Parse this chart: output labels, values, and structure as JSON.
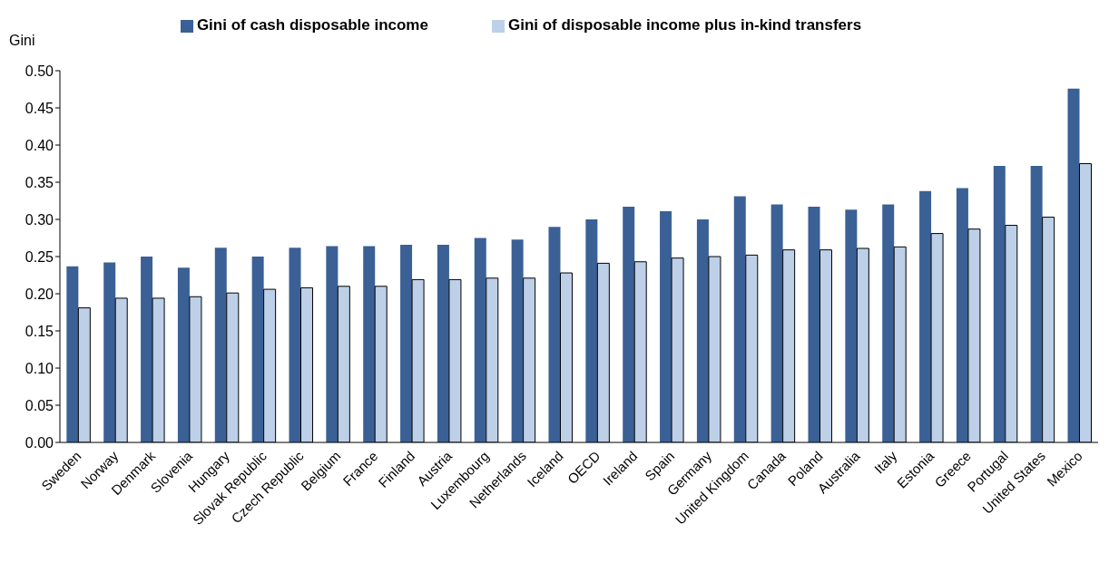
{
  "chart_data": {
    "type": "bar",
    "ylabel": "Gini",
    "categories": [
      "Sweden",
      "Norway",
      "Denmark",
      "Slovenia",
      "Hungary",
      "Slovak Republic",
      "Czech Republic",
      "Belgium",
      "France",
      "Finland",
      "Austria",
      "Luxembourg",
      "Netherlands",
      "Iceland",
      "OECD",
      "Ireland",
      "Spain",
      "Germany",
      "United Kingdom",
      "Canada",
      "Poland",
      "Australia",
      "Italy",
      "Estonia",
      "Greece",
      "Portugal",
      "United States",
      "Mexico"
    ],
    "series": [
      {
        "name": "Gini of cash disposable income",
        "color": "#3a6096",
        "values": [
          0.237,
          0.242,
          0.25,
          0.235,
          0.262,
          0.25,
          0.262,
          0.264,
          0.264,
          0.266,
          0.266,
          0.275,
          0.273,
          0.29,
          0.3,
          0.317,
          0.311,
          0.3,
          0.331,
          0.32,
          0.317,
          0.313,
          0.32,
          0.338,
          0.342,
          0.372,
          0.372,
          0.476
        ]
      },
      {
        "name": "Gini of disposable income plus in-kind transfers",
        "color": "#bdd0e8",
        "values": [
          0.181,
          0.194,
          0.194,
          0.196,
          0.201,
          0.206,
          0.208,
          0.21,
          0.21,
          0.219,
          0.219,
          0.221,
          0.221,
          0.228,
          0.241,
          0.243,
          0.248,
          0.25,
          0.252,
          0.259,
          0.259,
          0.261,
          0.263,
          0.281,
          0.287,
          0.292,
          0.303,
          0.375
        ]
      }
    ],
    "ylim": [
      0,
      0.5
    ],
    "yticks": [
      {
        "value": 0,
        "label": "0.00"
      },
      {
        "value": 0.05,
        "label": "0.05"
      },
      {
        "value": 0.1,
        "label": "0.10"
      },
      {
        "value": 0.15,
        "label": "0.15"
      },
      {
        "value": 0.2,
        "label": "0.20"
      },
      {
        "value": 0.25,
        "label": "0.25"
      },
      {
        "value": 0.3,
        "label": "0.30"
      },
      {
        "value": 0.35,
        "label": "0.35"
      },
      {
        "value": 0.4,
        "label": "0.40"
      },
      {
        "value": 0.45,
        "label": "0.45"
      },
      {
        "value": 0.5,
        "label": "0.50"
      }
    ],
    "grid": false,
    "legend": "top"
  }
}
